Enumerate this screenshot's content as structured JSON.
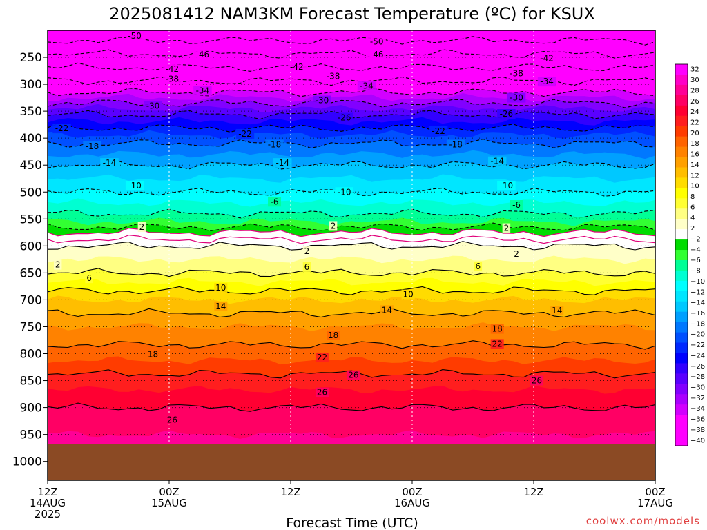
{
  "chart_data": {
    "type": "heatmap",
    "title": "2025081412 NAM3KM Forecast Temperature (ºC) for KSUX",
    "xlabel": "Forecast Time (UTC)",
    "ylabel": "",
    "credit": "coolwx.com/models",
    "x_axis": {
      "range_hours": [
        0,
        60
      ],
      "ticks": [
        {
          "hour": 0,
          "line1": "12Z",
          "line2": "14AUG",
          "line3": "2025"
        },
        {
          "hour": 12,
          "line1": "00Z",
          "line2": "15AUG",
          "line3": ""
        },
        {
          "hour": 24,
          "line1": "12Z",
          "line2": "",
          "line3": ""
        },
        {
          "hour": 36,
          "line1": "00Z",
          "line2": "16AUG",
          "line3": ""
        },
        {
          "hour": 48,
          "line1": "12Z",
          "line2": "",
          "line3": ""
        },
        {
          "hour": 60,
          "line1": "00Z",
          "line2": "17AUG",
          "line3": ""
        }
      ]
    },
    "y_axis": {
      "unit": "hPa",
      "range": [
        1035,
        200
      ],
      "ticks": [
        250,
        300,
        350,
        400,
        450,
        500,
        550,
        600,
        650,
        700,
        750,
        800,
        850,
        900,
        950,
        1000
      ],
      "tick_labels": [
        "250",
        "300",
        "350",
        "400",
        "450",
        "500",
        "550",
        "600",
        "650",
        "700",
        "750",
        "800",
        "850",
        "900",
        "950",
        "1000"
      ],
      "grid": true
    },
    "surface_pressure_hpa": 968,
    "temperature_profile": {
      "pressure_hpa": [
        200,
        250,
        300,
        350,
        400,
        450,
        500,
        550,
        575,
        600,
        650,
        700,
        750,
        800,
        850,
        900,
        950,
        968
      ],
      "temperature_c": [
        -53,
        -45,
        -37,
        -27,
        -19,
        -14,
        -10,
        -5,
        0,
        2,
        6,
        12,
        16,
        19,
        23,
        26,
        28,
        29
      ]
    },
    "contour_levels": [
      -50,
      -46,
      -42,
      -38,
      -34,
      -30,
      -26,
      -22,
      -18,
      -14,
      -10,
      -6,
      -2,
      2,
      6,
      10,
      14,
      18,
      22,
      26
    ],
    "contour_labels": [
      {
        "text": "-50",
        "hour": 8.6,
        "p": 210
      },
      {
        "text": "-50",
        "hour": 32.5,
        "p": 221
      },
      {
        "text": "-46",
        "hour": 15.3,
        "p": 245
      },
      {
        "text": "-46",
        "hour": 32.5,
        "p": 245
      },
      {
        "text": "-42",
        "hour": 12.3,
        "p": 272
      },
      {
        "text": "-42",
        "hour": 24.6,
        "p": 268
      },
      {
        "text": "-42",
        "hour": 49.3,
        "p": 252
      },
      {
        "text": "-38",
        "hour": 12.3,
        "p": 290
      },
      {
        "text": "-38",
        "hour": 28.2,
        "p": 285
      },
      {
        "text": "-38",
        "hour": 46.3,
        "p": 280
      },
      {
        "text": "-34",
        "hour": 15.3,
        "p": 312
      },
      {
        "text": "-34",
        "hour": 31.5,
        "p": 303
      },
      {
        "text": "-34",
        "hour": 49.3,
        "p": 295
      },
      {
        "text": "-30",
        "hour": 10.4,
        "p": 340
      },
      {
        "text": "-30",
        "hour": 27.1,
        "p": 330
      },
      {
        "text": "-30",
        "hour": 46.3,
        "p": 325
      },
      {
        "text": "-26",
        "hour": 29.3,
        "p": 362
      },
      {
        "text": "-26",
        "hour": 45.3,
        "p": 355
      },
      {
        "text": "-22",
        "hour": 1.4,
        "p": 382
      },
      {
        "text": "-22",
        "hour": 19.5,
        "p": 392
      },
      {
        "text": "-22",
        "hour": 38.6,
        "p": 387
      },
      {
        "text": "-18",
        "hour": 4.4,
        "p": 415
      },
      {
        "text": "-18",
        "hour": 22.4,
        "p": 412
      },
      {
        "text": "-18",
        "hour": 40.3,
        "p": 412
      },
      {
        "text": "-14",
        "hour": 6.1,
        "p": 446
      },
      {
        "text": "-14",
        "hour": 23.2,
        "p": 446
      },
      {
        "text": "-14",
        "hour": 44.4,
        "p": 443
      },
      {
        "text": "-10",
        "hour": 8.6,
        "p": 488
      },
      {
        "text": "-10",
        "hour": 29.3,
        "p": 500
      },
      {
        "text": "-10",
        "hour": 45.3,
        "p": 488
      },
      {
        "text": "-6",
        "hour": 22.4,
        "p": 518
      },
      {
        "text": "-6",
        "hour": 46.3,
        "p": 524
      },
      {
        "text": "2",
        "hour": 9.3,
        "p": 565
      },
      {
        "text": "2",
        "hour": 28.2,
        "p": 563
      },
      {
        "text": "2",
        "hour": 45.3,
        "p": 567
      },
      {
        "text": "2",
        "hour": 25.6,
        "p": 610
      },
      {
        "text": "2",
        "hour": 46.3,
        "p": 615
      },
      {
        "text": "2",
        "hour": 1.0,
        "p": 635
      },
      {
        "text": "6",
        "hour": 4.1,
        "p": 660
      },
      {
        "text": "6",
        "hour": 25.6,
        "p": 639
      },
      {
        "text": "6",
        "hour": 42.5,
        "p": 638
      },
      {
        "text": "10",
        "hour": 17.1,
        "p": 678
      },
      {
        "text": "10",
        "hour": 35.6,
        "p": 690
      },
      {
        "text": "14",
        "hour": 17.1,
        "p": 712
      },
      {
        "text": "14",
        "hour": 33.5,
        "p": 719
      },
      {
        "text": "14",
        "hour": 50.3,
        "p": 720
      },
      {
        "text": "18",
        "hour": 10.4,
        "p": 801
      },
      {
        "text": "18",
        "hour": 28.2,
        "p": 766
      },
      {
        "text": "18",
        "hour": 44.4,
        "p": 754
      },
      {
        "text": "22",
        "hour": 27.1,
        "p": 807
      },
      {
        "text": "22",
        "hour": 44.4,
        "p": 782
      },
      {
        "text": "26",
        "hour": 30.2,
        "p": 840
      },
      {
        "text": "26",
        "hour": 27.1,
        "p": 872
      },
      {
        "text": "26",
        "hour": 48.3,
        "p": 850
      },
      {
        "text": "26",
        "hour": 12.3,
        "p": 923
      }
    ],
    "colorbar": {
      "labels": [
        "32",
        "30",
        "28",
        "26",
        "24",
        "22",
        "20",
        "18",
        "16",
        "14",
        "12",
        "10",
        "8",
        "6",
        "4",
        "2",
        "−2",
        "−4",
        "−6",
        "−8",
        "−10",
        "−12",
        "−14",
        "−16",
        "−18",
        "−20",
        "−22",
        "−24",
        "−26",
        "−28",
        "−30",
        "−32",
        "−34",
        "−36",
        "−38",
        "−40"
      ],
      "bin_values": [
        32,
        30,
        28,
        26,
        24,
        22,
        20,
        18,
        16,
        14,
        12,
        10,
        8,
        6,
        4,
        2,
        0,
        -2,
        -4,
        -6,
        -8,
        -10,
        -12,
        -14,
        -16,
        -18,
        -20,
        -22,
        -24,
        -26,
        -28,
        -30,
        -32,
        -34,
        -36,
        -38,
        -40
      ],
      "colors": [
        "#ff00ff",
        "#ff00c8",
        "#ff0096",
        "#ff0064",
        "#ff0032",
        "#ff1e1e",
        "#ff3c00",
        "#ff6400",
        "#ff8200",
        "#ffa000",
        "#ffbe00",
        "#ffdc00",
        "#ffff00",
        "#ffff32",
        "#ffff82",
        "#ffffc8",
        "#ffffff",
        "#00dc00",
        "#32ff32",
        "#00ff96",
        "#00ffd2",
        "#00ffff",
        "#00e6ff",
        "#00c8ff",
        "#00a0ff",
        "#0078ff",
        "#0050ff",
        "#0028ff",
        "#0000ff",
        "#3200ff",
        "#5a00ff",
        "#8200ff",
        "#aa00ff",
        "#d200ff",
        "#ff00ff",
        "#ff00ff",
        "#ff00ff"
      ]
    },
    "colors": {
      "ground": "#8b4a24",
      "contour_line": "#000000",
      "freezing_line": "#e0007a",
      "credit": "#e04040"
    }
  }
}
